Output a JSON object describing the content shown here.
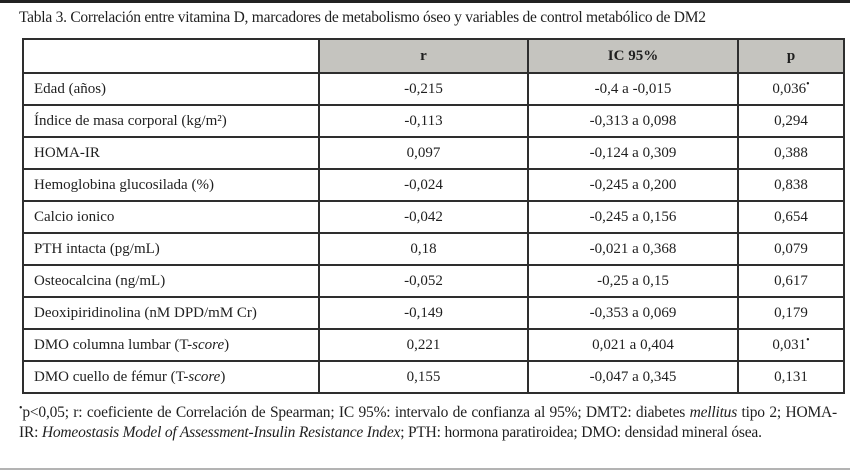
{
  "title": "Tabla 3. Correlación entre vitamina D, marcadores de metabolismo óseo y variables de control metabólico de DM2",
  "colors": {
    "header_bg": "#c5c4bf",
    "border": "#2e2e2e",
    "top_rule": "#222222",
    "bottom_rule": "#b3b3b3"
  },
  "table": {
    "headers": [
      "",
      "r",
      "IC 95%",
      "p"
    ],
    "rows": [
      {
        "label": [
          {
            "t": "Edad (años)"
          }
        ],
        "r": "-0,215",
        "ic": "-0,4 a -0,015",
        "p": "0,036",
        "p_marker": "•"
      },
      {
        "label": [
          {
            "t": "Índice de masa corporal (kg/m²)"
          }
        ],
        "r": "-0,113",
        "ic": "-0,313 a 0,098",
        "p": "0,294",
        "p_marker": ""
      },
      {
        "label": [
          {
            "t": "HOMA-IR"
          }
        ],
        "r": "0,097",
        "ic": "-0,124 a 0,309",
        "p": "0,388",
        "p_marker": ""
      },
      {
        "label": [
          {
            "t": "Hemoglobina glucosilada (%)"
          }
        ],
        "r": "-0,024",
        "ic": "-0,245 a 0,200",
        "p": "0,838",
        "p_marker": ""
      },
      {
        "label": [
          {
            "t": "Calcio ionico"
          }
        ],
        "r": "-0,042",
        "ic": "-0,245 a 0,156",
        "p": "0,654",
        "p_marker": ""
      },
      {
        "label": [
          {
            "t": "PTH intacta (pg/mL)"
          }
        ],
        "r": "0,18",
        "ic": "-0,021 a 0,368",
        "p": "0,079",
        "p_marker": ""
      },
      {
        "label": [
          {
            "t": "Osteocalcina (ng/mL)"
          }
        ],
        "r": "-0,052",
        "ic": "-0,25 a 0,15",
        "p": "0,617",
        "p_marker": ""
      },
      {
        "label": [
          {
            "t": "Deoxipiridinolina (nM DPD/mM Cr)"
          }
        ],
        "r": "-0,149",
        "ic": "-0,353 a 0,069",
        "p": "0,179",
        "p_marker": ""
      },
      {
        "label": [
          {
            "t": "DMO columna lumbar (T-"
          },
          {
            "t": "score",
            "i": true
          },
          {
            "t": ")"
          }
        ],
        "r": "0,221",
        "ic": "0,021 a 0,404",
        "p": "0,031",
        "p_marker": "•"
      },
      {
        "label": [
          {
            "t": "DMO cuello de fémur (T-"
          },
          {
            "t": "score",
            "i": true
          },
          {
            "t": ")"
          }
        ],
        "r": "0,155",
        "ic": "-0,047 a 0,345",
        "p": "0,131",
        "p_marker": ""
      }
    ]
  },
  "footnote": [
    {
      "t": "•",
      "sup": true
    },
    {
      "t": "p<0,05; r: coeficiente de Correlación de Spearman; IC 95%: intervalo de confianza al 95%; DMT2: diabetes "
    },
    {
      "t": "mellitus",
      "i": true
    },
    {
      "t": " tipo 2; HOMA-IR: "
    },
    {
      "t": "Homeostasis Model of Assessment-Insulin Resistance Index",
      "i": true
    },
    {
      "t": "; PTH: hormona paratiroidea; DMO: densidad mineral ósea."
    }
  ]
}
